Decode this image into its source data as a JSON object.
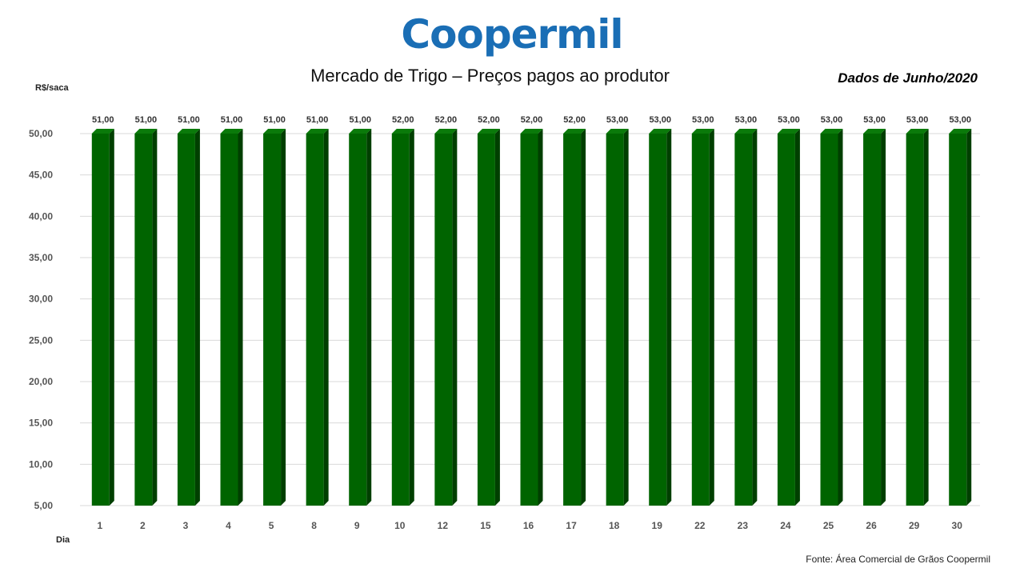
{
  "logo": {
    "text": "Coopermil",
    "color": "#1a6eb5"
  },
  "title": "Mercado de Trigo – Preços pagos ao produtor",
  "period": "Dados de Junho/2020",
  "source": "Fonte:  Área Comercial de Grãos Coopermil",
  "chart_data": {
    "type": "bar",
    "title": "Mercado de Trigo – Preços pagos ao produtor",
    "xlabel": "Dia",
    "ylabel": "R$/saca",
    "ylim": [
      5,
      50
    ],
    "yticks": [
      50,
      45,
      40,
      35,
      30,
      25,
      20,
      15,
      10,
      5
    ],
    "ytick_labels": [
      "50,00",
      "45,00",
      "40,00",
      "35,00",
      "30,00",
      "25,00",
      "20,00",
      "15,00",
      "10,00",
      "5,00"
    ],
    "grid": true,
    "bar_color": "#006400",
    "categories": [
      "1",
      "2",
      "3",
      "4",
      "5",
      "8",
      "9",
      "10",
      "12",
      "15",
      "16",
      "17",
      "18",
      "19",
      "22",
      "23",
      "24",
      "25",
      "26",
      "29",
      "30"
    ],
    "values": [
      51,
      51,
      51,
      51,
      51,
      51,
      51,
      52,
      52,
      52,
      52,
      52,
      53,
      53,
      53,
      53,
      53,
      53,
      53,
      53,
      53
    ],
    "data_labels": [
      "51,00",
      "51,00",
      "51,00",
      "51,00",
      "51,00",
      "51,00",
      "51,00",
      "52,00",
      "52,00",
      "52,00",
      "52,00",
      "52,00",
      "53,00",
      "53,00",
      "53,00",
      "53,00",
      "53,00",
      "53,00",
      "53,00",
      "53,00",
      "53,00"
    ]
  }
}
